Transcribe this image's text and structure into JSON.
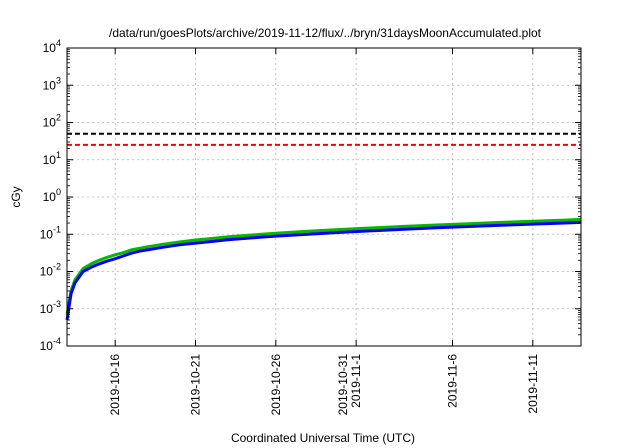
{
  "chart_data": {
    "type": "line",
    "title": "/data/run/goesPlots/archive/2019-11-12/flux/../bryn/31daysMoonAccumulated.plot",
    "xlabel": "Coordinated Universal Time (UTC)",
    "ylabel": "cGy",
    "y_scale": "log",
    "ylim": [
      0.0001,
      10000
    ],
    "xlim": [
      "2019-10-13T00:00",
      "2019-11-14T00:00"
    ],
    "grid": true,
    "y_ticks": [
      {
        "base": "10",
        "exp": "-4",
        "value": 0.0001
      },
      {
        "base": "10",
        "exp": "-3",
        "value": 0.001
      },
      {
        "base": "10",
        "exp": "-2",
        "value": 0.01
      },
      {
        "base": "10",
        "exp": "-1",
        "value": 0.1
      },
      {
        "base": "10",
        "exp": "0",
        "value": 1
      },
      {
        "base": "10",
        "exp": "1",
        "value": 10
      },
      {
        "base": "10",
        "exp": "2",
        "value": 100
      },
      {
        "base": "10",
        "exp": "3",
        "value": 1000
      },
      {
        "base": "10",
        "exp": "4",
        "value": 10000
      }
    ],
    "x_ticks": [
      {
        "date": "2019-10-16",
        "lines": [
          "2019-10-16"
        ]
      },
      {
        "date": "2019-10-21",
        "lines": [
          "2019-10-21"
        ]
      },
      {
        "date": "2019-10-26",
        "lines": [
          "2019-10-26"
        ]
      },
      {
        "date": "2019-10-31",
        "lines": [
          "2019-10-31",
          "2019-11-1"
        ]
      },
      {
        "date": "2019-11-06",
        "lines": [
          "2019-11-6"
        ]
      },
      {
        "date": "2019-11-11",
        "lines": [
          "2019-11-11"
        ]
      }
    ],
    "reference_lines": [
      {
        "value": 50,
        "color": "#000000",
        "dash": "dashed"
      },
      {
        "value": 25,
        "color": "#ff0000",
        "dash": "dashed"
      }
    ],
    "series": [
      {
        "color": "#00bb00",
        "x": [
          "2019-10-13T00:00",
          "2019-10-13T06:00",
          "2019-10-13T12:00",
          "2019-10-14T00:00",
          "2019-10-14T12:00",
          "2019-10-15T00:00",
          "2019-10-15T12:00",
          "2019-10-16T00:00",
          "2019-10-16T12:00",
          "2019-10-17T00:00",
          "2019-10-17T12:00",
          "2019-10-18T00:00",
          "2019-10-19T00:00",
          "2019-10-20T00:00",
          "2019-10-21T00:00",
          "2019-10-22T00:00",
          "2019-10-23T00:00",
          "2019-10-24T00:00",
          "2019-10-25T00:00",
          "2019-10-26T00:00",
          "2019-10-28T00:00",
          "2019-10-30T00:00",
          "2019-11-01T00:00",
          "2019-11-03T00:00",
          "2019-11-05T00:00",
          "2019-11-07T00:00",
          "2019-11-09T00:00",
          "2019-11-11T00:00",
          "2019-11-13T00:00",
          "2019-11-14T00:00"
        ],
        "y": [
          0.0007,
          0.003,
          0.006,
          0.012,
          0.016,
          0.02,
          0.024,
          0.028,
          0.032,
          0.038,
          0.042,
          0.046,
          0.054,
          0.062,
          0.07,
          0.077,
          0.085,
          0.092,
          0.099,
          0.106,
          0.12,
          0.134,
          0.148,
          0.162,
          0.177,
          0.192,
          0.208,
          0.224,
          0.24,
          0.25
        ]
      },
      {
        "color": "#0000ff",
        "x": [
          "2019-10-13T00:00",
          "2019-10-13T06:00",
          "2019-10-13T12:00",
          "2019-10-14T00:00",
          "2019-10-14T12:00",
          "2019-10-15T00:00",
          "2019-10-15T12:00",
          "2019-10-16T00:00",
          "2019-10-16T12:00",
          "2019-10-17T00:00",
          "2019-10-17T12:00",
          "2019-10-18T00:00",
          "2019-10-19T00:00",
          "2019-10-20T00:00",
          "2019-10-21T00:00",
          "2019-10-22T00:00",
          "2019-10-23T00:00",
          "2019-10-24T00:00",
          "2019-10-25T00:00",
          "2019-10-26T00:00",
          "2019-10-28T00:00",
          "2019-10-30T00:00",
          "2019-11-01T00:00",
          "2019-11-03T00:00",
          "2019-11-05T00:00",
          "2019-11-07T00:00",
          "2019-11-09T00:00",
          "2019-11-11T00:00",
          "2019-11-13T00:00",
          "2019-11-14T00:00"
        ],
        "y": [
          0.0005,
          0.0025,
          0.005,
          0.01,
          0.013,
          0.016,
          0.019,
          0.022,
          0.026,
          0.031,
          0.035,
          0.038,
          0.045,
          0.052,
          0.058,
          0.064,
          0.071,
          0.077,
          0.083,
          0.089,
          0.1,
          0.112,
          0.124,
          0.136,
          0.149,
          0.161,
          0.174,
          0.187,
          0.2,
          0.208
        ]
      }
    ]
  }
}
